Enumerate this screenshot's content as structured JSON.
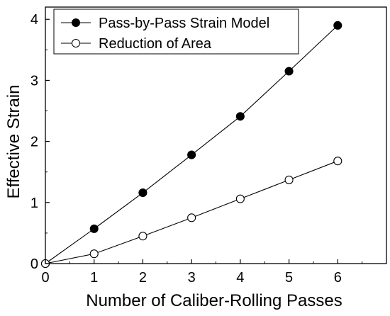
{
  "chart_data": {
    "type": "line",
    "title": "",
    "xlabel": "Number of Caliber-Rolling Passes",
    "ylabel": "Effective Strain",
    "xlim": [
      0,
      7
    ],
    "ylim": [
      0,
      4.2
    ],
    "xticks": [
      0,
      1,
      2,
      3,
      4,
      5,
      6
    ],
    "yticks": [
      0,
      1,
      2,
      3,
      4
    ],
    "grid": false,
    "legend_position": "top-left",
    "series": [
      {
        "name": "Pass-by-Pass Strain Model",
        "marker": "filled-circle",
        "color": "#000000",
        "x": [
          0,
          1,
          2,
          3,
          4,
          5,
          6
        ],
        "y": [
          0,
          0.57,
          1.16,
          1.78,
          2.41,
          3.15,
          3.9
        ]
      },
      {
        "name": "Reduction of Area",
        "marker": "open-circle",
        "color": "#000000",
        "x": [
          0,
          1,
          2,
          3,
          4,
          5,
          6
        ],
        "y": [
          0,
          0.16,
          0.45,
          0.75,
          1.06,
          1.37,
          1.68
        ]
      }
    ]
  }
}
